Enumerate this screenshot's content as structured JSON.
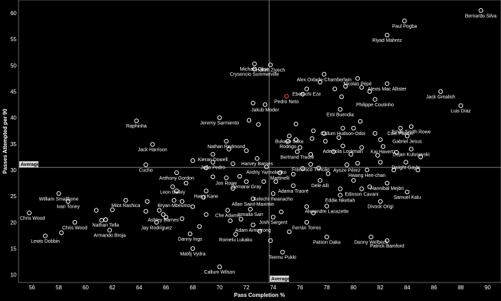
{
  "chart_data": {
    "type": "scatter",
    "title": "",
    "xlabel": "Pass Completion %",
    "ylabel": "Passes Attempted per 90",
    "xlim": [
      55,
      91
    ],
    "ylim": [
      8.5,
      62.5
    ],
    "xticks": [
      56,
      58,
      60,
      62,
      64,
      66,
      68,
      70,
      72,
      74,
      76,
      78,
      80,
      82,
      84,
      86,
      88,
      90
    ],
    "yticks": [
      10,
      15,
      20,
      25,
      30,
      35,
      40,
      45,
      50,
      55,
      60
    ],
    "grid": false,
    "average": {
      "label": "Average",
      "x": 73.7,
      "y": 30.5
    },
    "colors": {
      "background": "#000000",
      "marker": "#ffffff",
      "highlight": "#ff4d4d",
      "average_line": "#888888"
    },
    "points": [
      {
        "x": 89.5,
        "y": 60.5,
        "label": "Bernardo Silva"
      },
      {
        "x": 83.8,
        "y": 58.5,
        "label": "Paul Pogba"
      },
      {
        "x": 82.5,
        "y": 55.8,
        "label": "Riyad Mahrez"
      },
      {
        "x": 72.6,
        "y": 50.3,
        "label": "Michael Olise"
      },
      {
        "x": 73.8,
        "y": 50.1,
        "label": "Hakim Ziyech"
      },
      {
        "x": 72.6,
        "y": 49.3,
        "label": "Crysencio Summerville"
      },
      {
        "x": 77.8,
        "y": 48.3,
        "label": "Alex Oxlade-Chamberlain"
      },
      {
        "x": 80.3,
        "y": 47.5,
        "label": "Nicolas Pépé"
      },
      {
        "x": 82.5,
        "y": 46.5,
        "label": "Alexis Mac Allister"
      },
      {
        "x": 76.5,
        "y": 45.5,
        "label": "Eberechi Eze"
      },
      {
        "x": 86.5,
        "y": 45.0,
        "label": "Jack Grealish"
      },
      {
        "x": 75.0,
        "y": 44.1,
        "label": "Pedro Neto"
      },
      {
        "x": 81.6,
        "y": 43.5,
        "label": "Philippe Coutinho"
      },
      {
        "x": 73.4,
        "y": 42.5,
        "label": "Jakub Moder"
      },
      {
        "x": 88.0,
        "y": 42.3,
        "label": "Luis Díaz"
      },
      {
        "x": 79.0,
        "y": 41.6,
        "label": "Emi Buendia"
      },
      {
        "x": 63.8,
        "y": 39.4,
        "label": "Raphinha"
      },
      {
        "x": 70.0,
        "y": 40.0,
        "label": "Jeremy Sarmiento"
      },
      {
        "x": 79.2,
        "y": 38.0,
        "label": "Callum Hudson-Odoi"
      },
      {
        "x": 83.5,
        "y": 38.0,
        "label": "Cole Palmer"
      },
      {
        "x": 84.3,
        "y": 38.3,
        "label": "Emile Smith Rowe"
      },
      {
        "x": 84.0,
        "y": 36.5,
        "label": "Gabriel Jesus"
      },
      {
        "x": 75.2,
        "y": 36.5,
        "label": "Bukayo Saka"
      },
      {
        "x": 75.1,
        "y": 35.5,
        "label": "Rodrigo"
      },
      {
        "x": 70.5,
        "y": 35.5,
        "label": "Nathan Redmond"
      },
      {
        "x": 65.0,
        "y": 34.9,
        "label": "Jack Harrison"
      },
      {
        "x": 79.2,
        "y": 34.6,
        "label": "Ademola Lookman"
      },
      {
        "x": 82.2,
        "y": 34.5,
        "label": "Kai Havertz"
      },
      {
        "x": 84.3,
        "y": 34.0,
        "label": "Dejan Kulusevski"
      },
      {
        "x": 75.8,
        "y": 33.5,
        "label": "Bertrand Traoré"
      },
      {
        "x": 69.5,
        "y": 33.0,
        "label": "Kieran Dowell"
      },
      {
        "x": 72.8,
        "y": 32.2,
        "label": "Harvey Barnes"
      },
      {
        "x": 83.9,
        "y": 31.5,
        "label": "Dwight Gayle"
      },
      {
        "x": 64.5,
        "y": 31.0,
        "label": "Cucho"
      },
      {
        "x": 69.5,
        "y": 31.5,
        "label": "João Pedro"
      },
      {
        "x": 73.5,
        "y": 30.6,
        "label": "Andriy Yarmolenko"
      },
      {
        "x": 76.8,
        "y": 31.1,
        "label": "Francisco Trincão"
      },
      {
        "x": 79.5,
        "y": 31.0,
        "label": "Ayoze Pérez"
      },
      {
        "x": 81.0,
        "y": 30.0,
        "label": "Hwang Hee-chan"
      },
      {
        "x": 74.5,
        "y": 29.5,
        "label": "Martinelli"
      },
      {
        "x": 66.8,
        "y": 29.5,
        "label": "Anthony Gordon"
      },
      {
        "x": 70.5,
        "y": 28.5,
        "label": "Jon Rowe"
      },
      {
        "x": 72.0,
        "y": 27.8,
        "label": "Demarai Gray"
      },
      {
        "x": 77.5,
        "y": 28.0,
        "label": "Dele Alli"
      },
      {
        "x": 82.5,
        "y": 27.5,
        "label": "Hannibal Mejbri"
      },
      {
        "x": 66.5,
        "y": 26.8,
        "label": "Leon Bailey"
      },
      {
        "x": 75.5,
        "y": 27.0,
        "label": "Adama Traoré"
      },
      {
        "x": 80.6,
        "y": 26.4,
        "label": "Edinson Cavani"
      },
      {
        "x": 69.0,
        "y": 26.0,
        "label": "Harry Kane"
      },
      {
        "x": 84.0,
        "y": 25.8,
        "label": "Samuel Kalu"
      },
      {
        "x": 74.0,
        "y": 25.5,
        "label": "Kelechi Iheanacho"
      },
      {
        "x": 79.0,
        "y": 25.2,
        "label": "Eddie Nketiah"
      },
      {
        "x": 58.0,
        "y": 25.5,
        "label": "William Smallbone"
      },
      {
        "x": 72.5,
        "y": 24.5,
        "label": "Allan Saint-Maximin"
      },
      {
        "x": 82.0,
        "y": 24.0,
        "label": "Divock Origi"
      },
      {
        "x": 66.6,
        "y": 24.2,
        "label": "Bryan Mbeumo"
      },
      {
        "x": 63.0,
        "y": 24.2,
        "label": "Milot Rashica"
      },
      {
        "x": 58.7,
        "y": 24.0,
        "label": "Ivan Toney"
      },
      {
        "x": 78.0,
        "y": 23.1,
        "label": "Alexandre Lacazette"
      },
      {
        "x": 72.3,
        "y": 22.5,
        "label": "Ismaila Sarr"
      },
      {
        "x": 70.6,
        "y": 22.3,
        "label": "Che Adams"
      },
      {
        "x": 65.8,
        "y": 21.5,
        "label": "Ashley Barnes"
      },
      {
        "x": 74.0,
        "y": 21.0,
        "label": "Josh Sargent"
      },
      {
        "x": 55.8,
        "y": 21.8,
        "label": "Chris Wood"
      },
      {
        "x": 76.5,
        "y": 20.0,
        "label": "Ferrán Torres"
      },
      {
        "x": 61.5,
        "y": 20.5,
        "label": "Nathan Tella"
      },
      {
        "x": 65.3,
        "y": 20.0,
        "label": "Jay Rodríguez"
      },
      {
        "x": 72.5,
        "y": 19.5,
        "label": "Adam Armstrong"
      },
      {
        "x": 59.2,
        "y": 20.0,
        "label": "Chris Wood"
      },
      {
        "x": 61.8,
        "y": 18.5,
        "label": "Armando Broja"
      },
      {
        "x": 67.8,
        "y": 17.8,
        "label": "Danny Ings"
      },
      {
        "x": 71.2,
        "y": 17.7,
        "label": "Romelu Lukaku"
      },
      {
        "x": 57.0,
        "y": 17.4,
        "label": "Lewis Dobbin"
      },
      {
        "x": 78.0,
        "y": 17.2,
        "label": "Patson Daka"
      },
      {
        "x": 81.3,
        "y": 17.2,
        "label": "Danny Welbeck"
      },
      {
        "x": 82.5,
        "y": 16.5,
        "label": "Patrick Bamford"
      },
      {
        "x": 68.0,
        "y": 15.0,
        "label": "Matěj Vydra"
      },
      {
        "x": 74.7,
        "y": 14.3,
        "label": "Teemu Pukki"
      },
      {
        "x": 70.0,
        "y": 11.5,
        "label": "Callum Wilson"
      },
      {
        "x": 60.8,
        "y": 22.3,
        "label": ""
      },
      {
        "x": 61.5,
        "y": 20.5,
        "label": ""
      },
      {
        "x": 64.5,
        "y": 22.1,
        "label": ""
      },
      {
        "x": 65.5,
        "y": 22.3,
        "label": ""
      },
      {
        "x": 66.0,
        "y": 21.0,
        "label": ""
      },
      {
        "x": 67.2,
        "y": 20.7,
        "label": ""
      },
      {
        "x": 68.5,
        "y": 19.2,
        "label": ""
      },
      {
        "x": 69.0,
        "y": 21.5,
        "label": ""
      },
      {
        "x": 70.8,
        "y": 20.3,
        "label": ""
      },
      {
        "x": 71.6,
        "y": 20.6,
        "label": ""
      },
      {
        "x": 73.0,
        "y": 18.3,
        "label": ""
      },
      {
        "x": 73.8,
        "y": 16.5,
        "label": ""
      },
      {
        "x": 74.6,
        "y": 22.0,
        "label": ""
      },
      {
        "x": 75.2,
        "y": 18.2,
        "label": ""
      },
      {
        "x": 76.5,
        "y": 23.0,
        "label": ""
      },
      {
        "x": 77.0,
        "y": 21.8,
        "label": ""
      },
      {
        "x": 67.5,
        "y": 27.5,
        "label": ""
      },
      {
        "x": 68.8,
        "y": 24.8,
        "label": ""
      },
      {
        "x": 69.5,
        "y": 28.7,
        "label": ""
      },
      {
        "x": 71.0,
        "y": 26.5,
        "label": ""
      },
      {
        "x": 71.5,
        "y": 28.8,
        "label": ""
      },
      {
        "x": 73.3,
        "y": 27.8,
        "label": ""
      },
      {
        "x": 74.2,
        "y": 27.8,
        "label": ""
      },
      {
        "x": 75.5,
        "y": 29.2,
        "label": ""
      },
      {
        "x": 76.2,
        "y": 30.3,
        "label": ""
      },
      {
        "x": 77.4,
        "y": 30.4,
        "label": ""
      },
      {
        "x": 78.1,
        "y": 29.3,
        "label": ""
      },
      {
        "x": 79.0,
        "y": 26.4,
        "label": ""
      },
      {
        "x": 80.0,
        "y": 28.0,
        "label": ""
      },
      {
        "x": 80.3,
        "y": 31.3,
        "label": ""
      },
      {
        "x": 81.2,
        "y": 26.8,
        "label": ""
      },
      {
        "x": 82.0,
        "y": 31.5,
        "label": ""
      },
      {
        "x": 83.0,
        "y": 30.0,
        "label": ""
      },
      {
        "x": 84.8,
        "y": 30.0,
        "label": ""
      },
      {
        "x": 85.0,
        "y": 32.5,
        "label": ""
      },
      {
        "x": 76.0,
        "y": 34.3,
        "label": ""
      },
      {
        "x": 76.8,
        "y": 33.0,
        "label": ""
      },
      {
        "x": 77.9,
        "y": 35.5,
        "label": ""
      },
      {
        "x": 78.5,
        "y": 33.5,
        "label": ""
      },
      {
        "x": 78.9,
        "y": 36.2,
        "label": ""
      },
      {
        "x": 79.8,
        "y": 33.0,
        "label": ""
      },
      {
        "x": 80.6,
        "y": 34.3,
        "label": ""
      },
      {
        "x": 81.8,
        "y": 32.8,
        "label": ""
      },
      {
        "x": 82.0,
        "y": 35.8,
        "label": ""
      },
      {
        "x": 83.2,
        "y": 33.4,
        "label": ""
      },
      {
        "x": 75.7,
        "y": 35.8,
        "label": ""
      },
      {
        "x": 76.9,
        "y": 36.0,
        "label": ""
      },
      {
        "x": 77.8,
        "y": 37.0,
        "label": ""
      },
      {
        "x": 75.7,
        "y": 38.8,
        "label": ""
      },
      {
        "x": 77.0,
        "y": 37.5,
        "label": ""
      },
      {
        "x": 80.0,
        "y": 38.0,
        "label": ""
      },
      {
        "x": 80.5,
        "y": 39.3,
        "label": ""
      },
      {
        "x": 81.6,
        "y": 37.0,
        "label": ""
      },
      {
        "x": 72.2,
        "y": 39.5,
        "label": ""
      },
      {
        "x": 72.9,
        "y": 38.7,
        "label": ""
      },
      {
        "x": 76.2,
        "y": 44.5,
        "label": ""
      },
      {
        "x": 77.5,
        "y": 46.8,
        "label": ""
      },
      {
        "x": 78.6,
        "y": 45.5,
        "label": ""
      },
      {
        "x": 79.4,
        "y": 46.0,
        "label": ""
      },
      {
        "x": 80.6,
        "y": 45.8,
        "label": ""
      },
      {
        "x": 81.2,
        "y": 45.0,
        "label": ""
      },
      {
        "x": 79.1,
        "y": 44.0,
        "label": ""
      },
      {
        "x": 72.5,
        "y": 42.8,
        "label": ""
      },
      {
        "x": 70.7,
        "y": 34.0,
        "label": ""
      },
      {
        "x": 72.0,
        "y": 33.7,
        "label": ""
      },
      {
        "x": 71.0,
        "y": 31.2,
        "label": ""
      },
      {
        "x": 69.0,
        "y": 30.4,
        "label": ""
      },
      {
        "x": 68.0,
        "y": 31.8,
        "label": ""
      },
      {
        "x": 66.8,
        "y": 26.0,
        "label": ""
      },
      {
        "x": 67.2,
        "y": 24.0,
        "label": ""
      },
      {
        "x": 68.0,
        "y": 23.0,
        "label": ""
      },
      {
        "x": 64.6,
        "y": 24.0,
        "label": ""
      },
      {
        "x": 62.0,
        "y": 22.4,
        "label": ""
      },
      {
        "x": 61.2,
        "y": 20.4,
        "label": ""
      },
      {
        "x": 58.2,
        "y": 18.0,
        "label": ""
      }
    ]
  }
}
